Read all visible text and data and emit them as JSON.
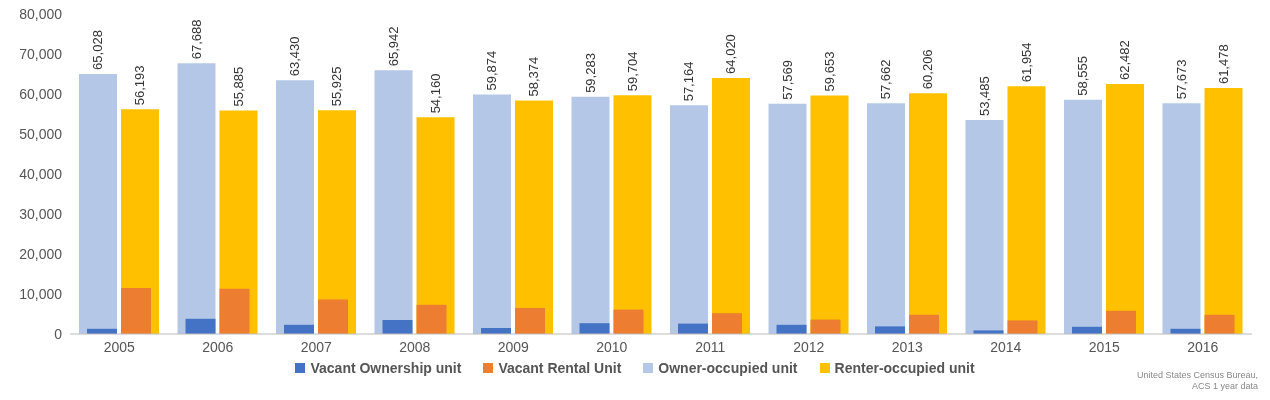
{
  "chart_data": {
    "type": "bar",
    "categories": [
      "2005",
      "2006",
      "2007",
      "2008",
      "2009",
      "2010",
      "2011",
      "2012",
      "2013",
      "2014",
      "2015",
      "2016"
    ],
    "series": [
      {
        "name": "Vacant Ownership unit",
        "color": "#4472c4",
        "values": [
          1300,
          3800,
          2300,
          3500,
          1500,
          2700,
          2600,
          2300,
          1900,
          900,
          1800,
          1300
        ]
      },
      {
        "name": "Vacant Rental Unit",
        "color": "#ed7d31",
        "values": [
          11500,
          11300,
          8600,
          7300,
          6500,
          6100,
          5200,
          3600,
          4800,
          3400,
          5800,
          4800
        ]
      },
      {
        "name": "Owner-occupied unit",
        "color": "#b4c7e7",
        "values": [
          65028,
          67688,
          63430,
          65942,
          59874,
          59283,
          57164,
          57569,
          57662,
          53485,
          58555,
          57673
        ],
        "value_labels": [
          "65,028",
          "67,688",
          "63,430",
          "65,942",
          "59,874",
          "59,283",
          "57,164",
          "57,569",
          "57,662",
          "53,485",
          "58,555",
          "57,673"
        ]
      },
      {
        "name": "Renter-occupied unit",
        "color": "#ffc000",
        "values": [
          56193,
          55885,
          55925,
          54160,
          58374,
          59704,
          64020,
          59653,
          60206,
          61954,
          62482,
          61478
        ],
        "value_labels": [
          "56,193",
          "55,885",
          "55,925",
          "54,160",
          "58,374",
          "59,704",
          "64,020",
          "59,653",
          "60,206",
          "61,954",
          "62,482",
          "61,478"
        ]
      }
    ],
    "ylim": [
      0,
      80000
    ],
    "yticks": [
      0,
      {
        "value": 10000,
        "label": "10,000"
      },
      {
        "value": 20000,
        "label": "20,000"
      },
      {
        "value": 30000,
        "label": "30,000"
      },
      {
        "value": 40000,
        "label": "40,000"
      },
      {
        "value": 50000,
        "label": "50,000"
      },
      {
        "value": 60000,
        "label": "60,000"
      },
      {
        "value": 70000,
        "label": "70,000"
      },
      {
        "value": 80000,
        "label": "80,000"
      }
    ],
    "legend": "bottom",
    "annotations": [
      "United States Census Bureau,",
      "ACS 1 year data"
    ]
  }
}
